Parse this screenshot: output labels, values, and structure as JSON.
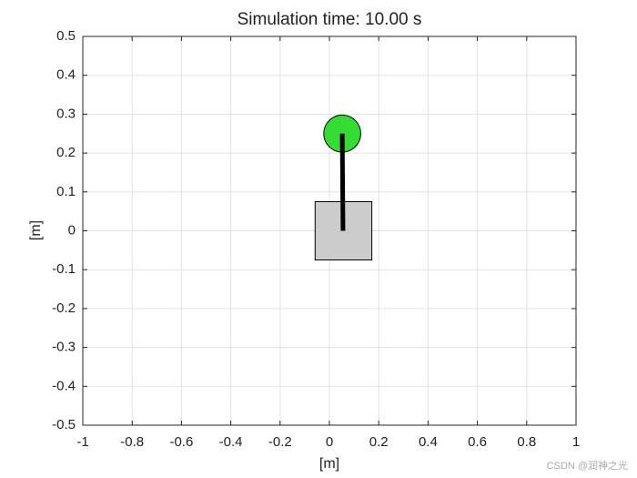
{
  "chart_data": {
    "type": "cartpole",
    "title": "Simulation time: 10.00 s",
    "xlabel": "[m]",
    "ylabel": "[m]",
    "xlim": [
      -1,
      1
    ],
    "xticks": [
      -1,
      -0.8,
      -0.6,
      -0.4,
      -0.2,
      0,
      0.2,
      0.4,
      0.6,
      0.8,
      1
    ],
    "ylim": [
      -0.5,
      0.5
    ],
    "yticks": [
      -0.5,
      -0.4,
      -0.3,
      -0.2,
      -0.1,
      0,
      0.1,
      0.2,
      0.3,
      0.4,
      0.5
    ],
    "grid": true,
    "cart": {
      "x": 0.057,
      "y": 0,
      "width": 0.23,
      "height": 0.15,
      "color": "#cccccc"
    },
    "pole": {
      "x": [
        0.055,
        0.052
      ],
      "y": [
        0,
        0.25
      ],
      "color": "#000000"
    },
    "bob": {
      "x": 0.052,
      "y": 0.25,
      "radius": 0.075,
      "color": "#33dd33"
    },
    "watermark": "CSDN @润神之光"
  }
}
